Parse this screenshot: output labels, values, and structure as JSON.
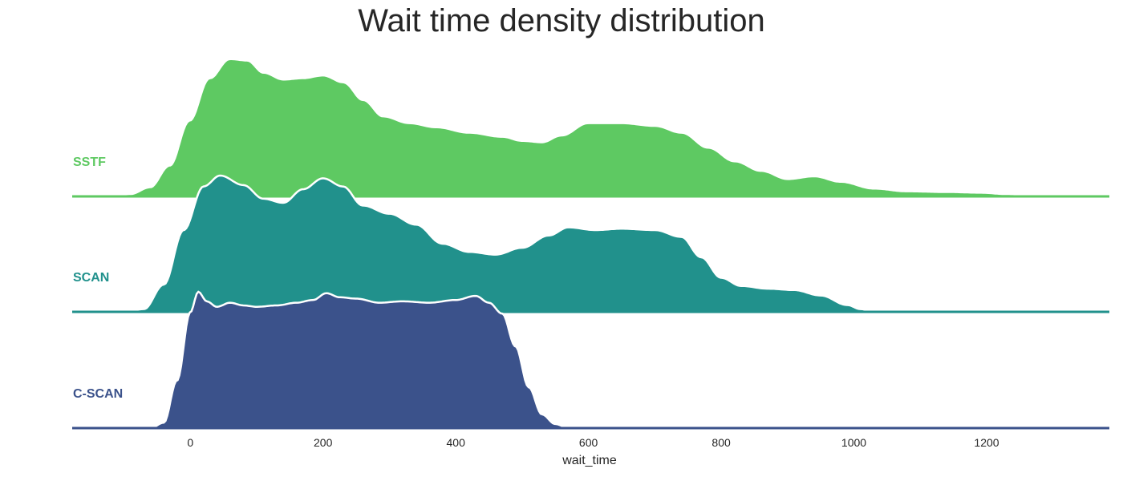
{
  "chart_data": {
    "type": "area",
    "subtype": "ridgeline-density",
    "title": "Wait time density distribution",
    "xlabel": "wait_time",
    "ylabel": "",
    "xlim": [
      -178,
      1385
    ],
    "x_ticks": [
      0,
      200,
      400,
      600,
      800,
      1000,
      1200
    ],
    "grid": false,
    "legend": "none",
    "series": [
      {
        "name": "SSTF",
        "color": "#5ec962",
        "peak": 1.0,
        "density": [
          [
            -178,
            0.0
          ],
          [
            -120,
            0.0
          ],
          [
            -90,
            0.01
          ],
          [
            -60,
            0.06
          ],
          [
            -30,
            0.22
          ],
          [
            0,
            0.55
          ],
          [
            30,
            0.86
          ],
          [
            60,
            1.0
          ],
          [
            85,
            0.99
          ],
          [
            110,
            0.9
          ],
          [
            140,
            0.85
          ],
          [
            170,
            0.86
          ],
          [
            200,
            0.88
          ],
          [
            230,
            0.83
          ],
          [
            260,
            0.7
          ],
          [
            290,
            0.58
          ],
          [
            330,
            0.53
          ],
          [
            370,
            0.5
          ],
          [
            420,
            0.46
          ],
          [
            470,
            0.43
          ],
          [
            500,
            0.4
          ],
          [
            530,
            0.39
          ],
          [
            560,
            0.44
          ],
          [
            600,
            0.53
          ],
          [
            650,
            0.53
          ],
          [
            700,
            0.51
          ],
          [
            740,
            0.46
          ],
          [
            780,
            0.35
          ],
          [
            820,
            0.25
          ],
          [
            860,
            0.18
          ],
          [
            900,
            0.12
          ],
          [
            940,
            0.14
          ],
          [
            980,
            0.1
          ],
          [
            1030,
            0.05
          ],
          [
            1080,
            0.03
          ],
          [
            1140,
            0.025
          ],
          [
            1190,
            0.02
          ],
          [
            1230,
            0.01
          ],
          [
            1270,
            0.003
          ],
          [
            1385,
            0.0
          ]
        ]
      },
      {
        "name": "SCAN",
        "color": "#21918c",
        "peak": 1.0,
        "density": [
          [
            -178,
            0.0
          ],
          [
            -100,
            0.0
          ],
          [
            -70,
            0.02
          ],
          [
            -40,
            0.2
          ],
          [
            -10,
            0.6
          ],
          [
            20,
            0.92
          ],
          [
            45,
            1.0
          ],
          [
            80,
            0.93
          ],
          [
            110,
            0.83
          ],
          [
            140,
            0.8
          ],
          [
            170,
            0.9
          ],
          [
            200,
            0.98
          ],
          [
            230,
            0.92
          ],
          [
            260,
            0.78
          ],
          [
            300,
            0.72
          ],
          [
            340,
            0.64
          ],
          [
            380,
            0.5
          ],
          [
            420,
            0.44
          ],
          [
            460,
            0.42
          ],
          [
            500,
            0.47
          ],
          [
            540,
            0.56
          ],
          [
            570,
            0.62
          ],
          [
            610,
            0.6
          ],
          [
            650,
            0.61
          ],
          [
            700,
            0.6
          ],
          [
            740,
            0.55
          ],
          [
            770,
            0.4
          ],
          [
            800,
            0.25
          ],
          [
            830,
            0.19
          ],
          [
            870,
            0.17
          ],
          [
            910,
            0.16
          ],
          [
            950,
            0.12
          ],
          [
            990,
            0.05
          ],
          [
            1010,
            0.02
          ],
          [
            1030,
            0.0
          ],
          [
            1385,
            0.0
          ]
        ]
      },
      {
        "name": "C-SCAN",
        "color": "#3b528b",
        "peak": 1.0,
        "density": [
          [
            -178,
            0.0
          ],
          [
            -60,
            0.0
          ],
          [
            -40,
            0.04
          ],
          [
            -20,
            0.35
          ],
          [
            0,
            0.85
          ],
          [
            12,
            1.0
          ],
          [
            25,
            0.93
          ],
          [
            40,
            0.89
          ],
          [
            60,
            0.92
          ],
          [
            80,
            0.9
          ],
          [
            100,
            0.89
          ],
          [
            130,
            0.9
          ],
          [
            160,
            0.92
          ],
          [
            185,
            0.94
          ],
          [
            205,
            0.99
          ],
          [
            225,
            0.96
          ],
          [
            250,
            0.95
          ],
          [
            285,
            0.92
          ],
          [
            320,
            0.93
          ],
          [
            360,
            0.92
          ],
          [
            400,
            0.94
          ],
          [
            430,
            0.97
          ],
          [
            450,
            0.92
          ],
          [
            470,
            0.84
          ],
          [
            490,
            0.6
          ],
          [
            510,
            0.3
          ],
          [
            530,
            0.1
          ],
          [
            550,
            0.03
          ],
          [
            570,
            0.0
          ],
          [
            1385,
            0.0
          ]
        ]
      }
    ]
  }
}
